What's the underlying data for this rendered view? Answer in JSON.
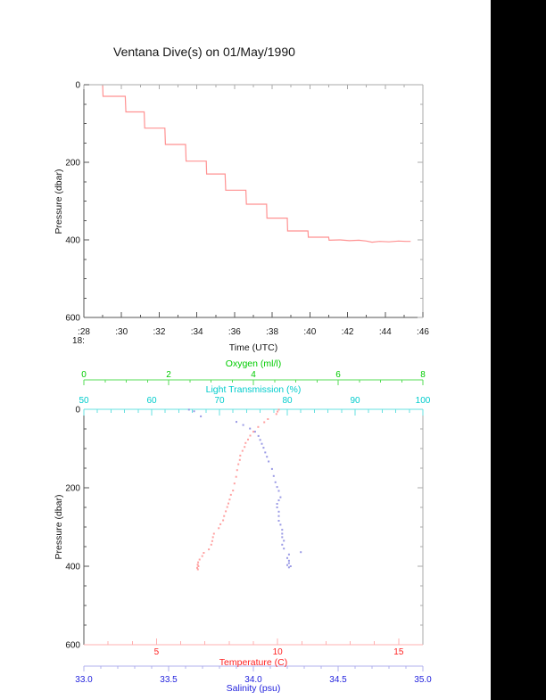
{
  "page": {
    "background": "#ffffff",
    "right_band_color": "#000000"
  },
  "title": "Ventana Dive(s) on 01/May/1990",
  "chart_data": [
    {
      "id": "dive-pressure-vs-time",
      "type": "line",
      "title": "Ventana Dive(s) on 01/May/1990",
      "xlabel": "Time (UTC)",
      "ylabel": "Pressure (dbar)",
      "xlim": [
        28,
        46
      ],
      "ylim": [
        600,
        0
      ],
      "x_tick_values": [
        28,
        30,
        32,
        34,
        36,
        38,
        40,
        42,
        44,
        46
      ],
      "x_tick_labels": [
        ":28",
        ":30",
        ":32",
        ":34",
        ":36",
        ":38",
        ":40",
        ":42",
        ":44",
        ":46"
      ],
      "x_first_tick_sublabel": "18:",
      "x_minor_step": 1,
      "y_tick_values": [
        0,
        200,
        400,
        600
      ],
      "y_tick_labels": [
        "0",
        "200",
        "400",
        "600"
      ],
      "y_minor_step": 50,
      "grid": false,
      "axis_color": "#555555",
      "mirror_axis_color": "#aaaaaa",
      "series": [
        {
          "name": "dive-pressure-profile",
          "color": "#ff8c8c",
          "style": "step-line",
          "points": [
            [
              29.0,
              2
            ],
            [
              29.02,
              30
            ],
            [
              30.2,
              30
            ],
            [
              30.23,
              70
            ],
            [
              31.2,
              70
            ],
            [
              31.23,
              112
            ],
            [
              32.3,
              112
            ],
            [
              32.33,
              154
            ],
            [
              33.4,
              154
            ],
            [
              33.43,
              197
            ],
            [
              34.5,
              197
            ],
            [
              34.52,
              230
            ],
            [
              35.5,
              230
            ],
            [
              35.53,
              272
            ],
            [
              36.6,
              272
            ],
            [
              36.63,
              308
            ],
            [
              37.7,
              308
            ],
            [
              37.72,
              344
            ],
            [
              38.8,
              344
            ],
            [
              38.82,
              377
            ],
            [
              39.9,
              377
            ],
            [
              39.92,
              393
            ],
            [
              41.0,
              393
            ],
            [
              41.02,
              401
            ],
            [
              41.6,
              400
            ],
            [
              42.1,
              402
            ],
            [
              42.6,
              401
            ],
            [
              43.0,
              403
            ],
            [
              43.3,
              406
            ],
            [
              43.7,
              404
            ],
            [
              44.2,
              405
            ],
            [
              44.7,
              403
            ],
            [
              45.1,
              404
            ],
            [
              45.35,
              404
            ]
          ]
        }
      ]
    },
    {
      "id": "ctd-profiles-vs-pressure",
      "type": "scatter",
      "ylabel": "Pressure (dbar)",
      "ylim": [
        600,
        0
      ],
      "y_tick_values": [
        0,
        200,
        400,
        600
      ],
      "y_tick_labels": [
        "0",
        "200",
        "400",
        "600"
      ],
      "y_minor_step": 50,
      "grid": false,
      "axis_color": "#555555",
      "mirror_axis_color": "#aaaaaa",
      "x_axes": [
        {
          "id": "oxygen",
          "label": "Oxygen (ml/l)",
          "range": [
            0,
            8
          ],
          "tick_values": [
            0,
            2,
            4,
            6,
            8
          ],
          "tick_labels": [
            "0",
            "2",
            "4",
            "6",
            "8"
          ],
          "minor_step": 0.5,
          "label_color": "#00cc00",
          "line_color": "#55dd55",
          "position": "floating-above"
        },
        {
          "id": "light-transmission",
          "label": "Light Transmission (%)",
          "range": [
            50,
            100
          ],
          "tick_values": [
            50,
            60,
            70,
            80,
            90,
            100
          ],
          "tick_labels": [
            "50",
            "60",
            "70",
            "80",
            "90",
            "100"
          ],
          "minor_step": 2,
          "label_color": "#00cccc",
          "line_color": "#66e0e0",
          "position": "top-edge"
        },
        {
          "id": "temperature",
          "label": "Temperature (C)",
          "range": [
            2,
            16
          ],
          "tick_values": [
            5,
            10,
            15
          ],
          "tick_labels": [
            "5",
            "10",
            "15"
          ],
          "minor_step": 1,
          "label_color": "#ff2222",
          "line_color": "#ffb0b0",
          "position": "bottom-edge"
        },
        {
          "id": "salinity",
          "label": "Salinity (psu)",
          "range": [
            33,
            35
          ],
          "tick_values": [
            33,
            33.5,
            34,
            34.5,
            35
          ],
          "tick_labels": [
            "33.0",
            "33.5",
            "34.0",
            "34.5",
            "35.0"
          ],
          "minor_step": 0.1,
          "label_color": "#2222dd",
          "line_color": "#b0b0ee",
          "position": "floating-below"
        }
      ],
      "series": [
        {
          "name": "temperature-profile",
          "x_axis": "temperature",
          "color": "#ff9090",
          "style": "dots",
          "points": [
            [
              10.05,
              1
            ],
            [
              10.0,
              6
            ],
            [
              9.95,
              12
            ],
            [
              9.6,
              25
            ],
            [
              9.45,
              33
            ],
            [
              9.2,
              45
            ],
            [
              9.0,
              57
            ],
            [
              8.87,
              67
            ],
            [
              8.78,
              77
            ],
            [
              8.68,
              86
            ],
            [
              8.64,
              96
            ],
            [
              8.55,
              106
            ],
            [
              8.46,
              118
            ],
            [
              8.44,
              129
            ],
            [
              8.38,
              140
            ],
            [
              8.33,
              155
            ],
            [
              8.29,
              172
            ],
            [
              8.22,
              189
            ],
            [
              8.16,
              207
            ],
            [
              8.07,
              218
            ],
            [
              8.02,
              230
            ],
            [
              7.97,
              240
            ],
            [
              7.92,
              249
            ],
            [
              7.86,
              260
            ],
            [
              7.79,
              272
            ],
            [
              7.75,
              283
            ],
            [
              7.64,
              293
            ],
            [
              7.57,
              303
            ],
            [
              7.37,
              317
            ],
            [
              7.33,
              326
            ],
            [
              7.3,
              336
            ],
            [
              7.26,
              345
            ],
            [
              7.16,
              357
            ],
            [
              6.95,
              366
            ],
            [
              6.89,
              374
            ],
            [
              6.78,
              383
            ],
            [
              6.72,
              390
            ],
            [
              6.7,
              396
            ],
            [
              6.73,
              400
            ],
            [
              6.68,
              404
            ],
            [
              6.71,
              408
            ]
          ]
        },
        {
          "name": "salinity-profile",
          "x_axis": "salinity",
          "color": "#8888e0",
          "style": "dots",
          "points": [
            [
              33.62,
              1
            ],
            [
              33.65,
              5
            ],
            [
              33.69,
              18
            ],
            [
              33.9,
              32
            ],
            [
              33.94,
              40
            ],
            [
              33.98,
              49
            ],
            [
              34.01,
              57
            ],
            [
              34.03,
              68
            ],
            [
              34.04,
              78
            ],
            [
              34.05,
              88
            ],
            [
              34.06,
              98
            ],
            [
              34.07,
              110
            ],
            [
              34.08,
              121
            ],
            [
              34.09,
              133
            ],
            [
              34.11,
              152
            ],
            [
              34.12,
              170
            ],
            [
              34.13,
              186
            ],
            [
              34.14,
              198
            ],
            [
              34.15,
              208
            ],
            [
              34.16,
              224
            ],
            [
              34.15,
              232
            ],
            [
              34.14,
              241
            ],
            [
              34.14,
              250
            ],
            [
              34.15,
              261
            ],
            [
              34.15,
              272
            ],
            [
              34.15,
              284
            ],
            [
              34.16,
              294
            ],
            [
              34.17,
              307
            ],
            [
              34.17,
              317
            ],
            [
              34.17,
              326
            ],
            [
              34.18,
              335
            ],
            [
              34.17,
              345
            ],
            [
              34.18,
              355
            ],
            [
              34.28,
              364
            ],
            [
              34.21,
              370
            ],
            [
              34.2,
              379
            ],
            [
              34.21,
              386
            ],
            [
              34.21,
              392
            ],
            [
              34.2,
              397
            ],
            [
              34.22,
              400
            ],
            [
              34.21,
              403
            ]
          ]
        }
      ]
    }
  ]
}
